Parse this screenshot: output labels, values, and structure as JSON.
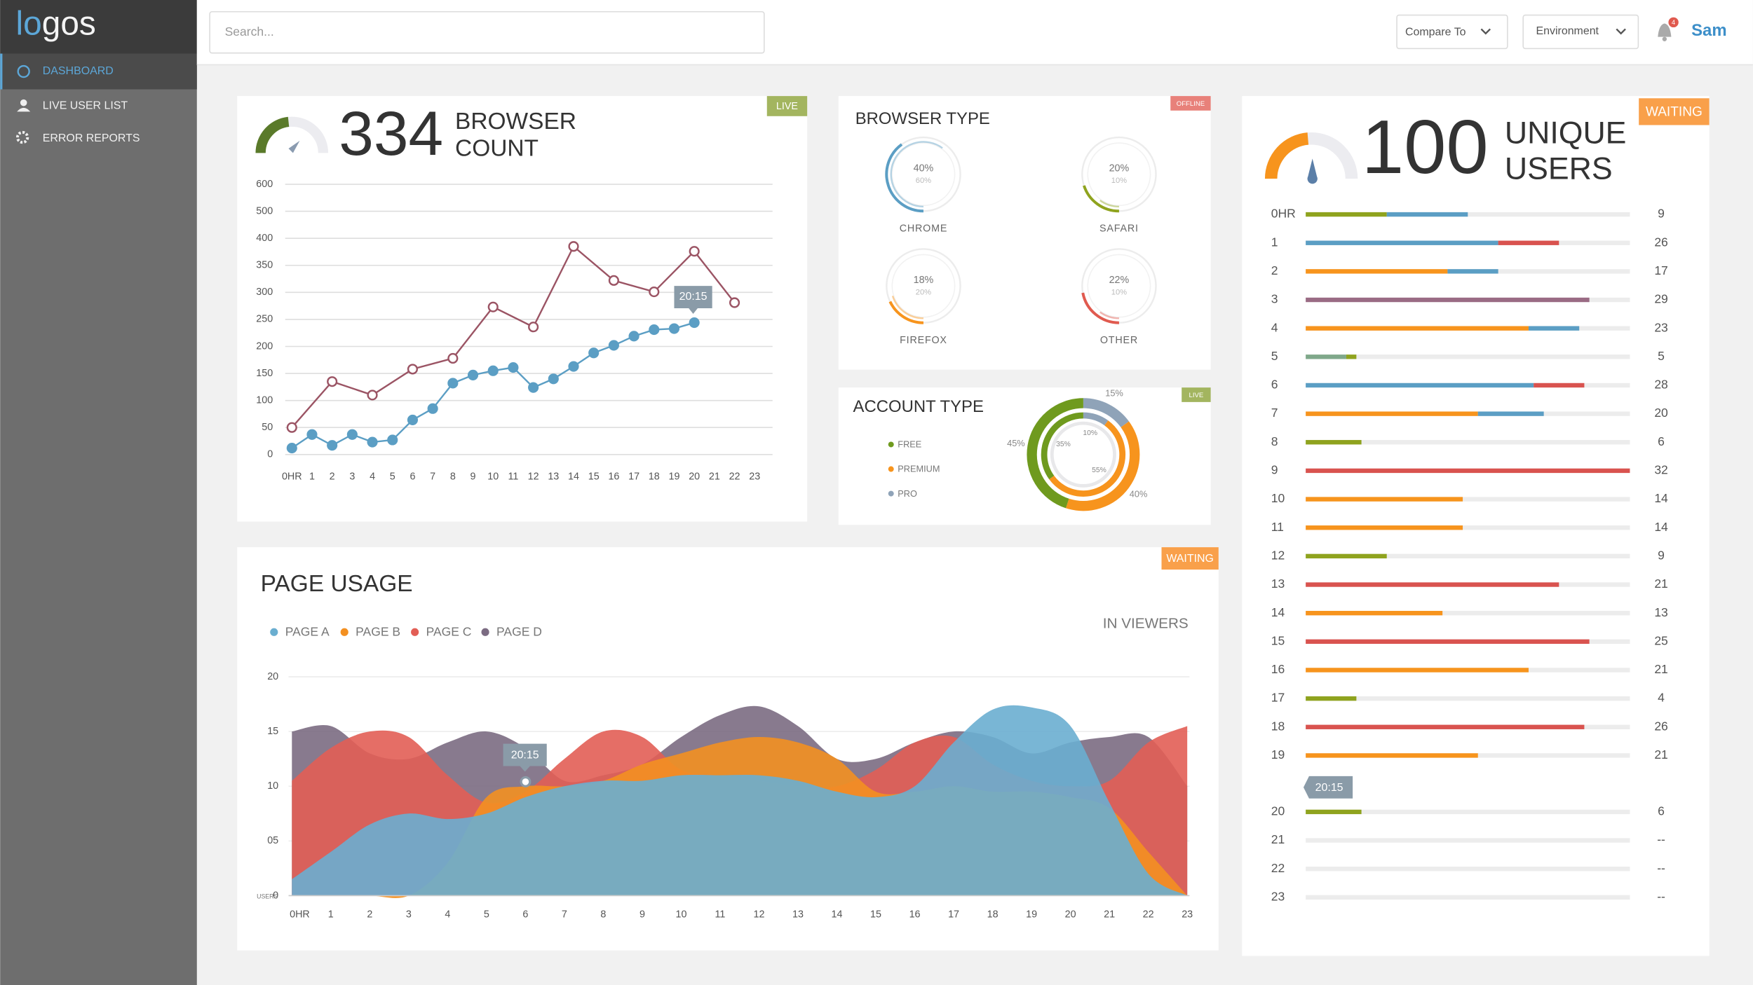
{
  "sidebar": {
    "logo": [
      "lo",
      "gos"
    ],
    "nav": [
      "DASHBOARD",
      "LIVE USER LIST",
      "ERROR REPORTS"
    ]
  },
  "header": {
    "search_placeholder": "Search...",
    "compare": "Compare To",
    "environment": "Environment",
    "notifications": "4",
    "user": "Sam"
  },
  "browser_count": {
    "badge": "LIVE",
    "count": 334,
    "label": [
      "BROWSER",
      "COUNT"
    ],
    "tooltip": "20:15",
    "chart": {
      "type": "line",
      "xlim": [
        0,
        23
      ],
      "xticks": [
        {
          "value": 0,
          "label": "0HR"
        },
        1,
        2,
        3,
        4,
        5,
        6,
        7,
        8,
        9,
        10,
        11,
        12,
        13,
        14,
        15,
        16,
        17,
        18,
        19,
        20,
        21,
        22,
        23
      ],
      "ylim": [
        0,
        600
      ],
      "yticks": [
        0,
        50,
        100,
        150,
        200,
        250,
        300,
        350,
        400,
        500,
        600
      ],
      "grid": true,
      "series": [
        {
          "color": "#9b5464",
          "x": [
            0,
            2,
            4,
            6,
            8,
            10,
            12,
            14,
            16,
            18,
            20,
            22
          ],
          "values": [
            50,
            135,
            110,
            158,
            178,
            273,
            236,
            385,
            322,
            301,
            376,
            281
          ]
        },
        {
          "color": "#5b9ec4",
          "x": [
            0,
            1,
            2,
            3,
            4,
            5,
            6,
            7,
            8,
            9,
            10,
            11,
            12,
            13,
            14,
            15,
            16,
            17,
            18,
            19,
            20
          ],
          "values": [
            12,
            37,
            17,
            37,
            23,
            27,
            64,
            85,
            132,
            147,
            155,
            161,
            124,
            140,
            163,
            188,
            202,
            219,
            231,
            233,
            244
          ]
        }
      ]
    }
  },
  "browser_type": {
    "title": "BROWSER TYPE",
    "badge": "OFFLINE",
    "items": [
      {
        "name": "CHROME",
        "color": "#5b9ec4",
        "value": 40,
        "value_label": "40%",
        "secondary": 60,
        "secondary_label": "60%"
      },
      {
        "name": "SAFARI",
        "color": "#8fa31e",
        "value": 20,
        "value_label": "20%",
        "secondary": 10,
        "secondary_label": "10%"
      },
      {
        "name": "FIREFOX",
        "color": "#f7941d",
        "value": 18,
        "value_label": "18%",
        "secondary": 20,
        "secondary_label": "20%"
      },
      {
        "name": "OTHER",
        "color": "#e05a4f",
        "value": 22,
        "value_label": "22%",
        "secondary": 10,
        "secondary_label": "10%"
      }
    ]
  },
  "account_type": {
    "title": "ACCOUNT TYPE",
    "badge": "LIVE",
    "segments": [
      {
        "name": "FREE",
        "color": "#6f9a1e",
        "outer": 45,
        "outer_label": "45%",
        "inner": 35,
        "inner_label": "35%"
      },
      {
        "name": "PREMIUM",
        "color": "#f7941d",
        "outer": 40,
        "outer_label": "40%",
        "inner": 55,
        "inner_label": "55%"
      },
      {
        "name": "PRO",
        "color": "#8fa3b8",
        "outer": 15,
        "outer_label": "15%",
        "inner": 10,
        "inner_label": "10%"
      }
    ]
  },
  "page_usage": {
    "title": "PAGE USAGE",
    "badge": "WAITING",
    "unit": "IN VIEWERS",
    "tooltip": "20:15",
    "chart": {
      "type": "area",
      "categories": [
        "0HR",
        "1",
        "2",
        "3",
        "4",
        "5",
        "6",
        "7",
        "8",
        "9",
        "10",
        "11",
        "12",
        "13",
        "14",
        "15",
        "16",
        "17",
        "18",
        "19",
        "20",
        "21",
        "22",
        "23"
      ],
      "ylim": [
        0,
        20
      ],
      "yticks": [
        0,
        {
          "value": 5,
          "label": "05"
        },
        10,
        15,
        20
      ],
      "y_label": "USERS",
      "grid": true,
      "series": [
        {
          "name": "PAGE A",
          "color": "#6aaed0",
          "values": [
            1.5,
            4,
            6.5,
            7.5,
            7,
            7.5,
            9,
            10,
            10.5,
            10.5,
            11,
            11,
            11,
            10.5,
            9.5,
            9,
            10,
            14,
            17,
            17.2,
            15.5,
            8.5,
            2,
            0
          ]
        },
        {
          "name": "PAGE B",
          "color": "#f39021",
          "values": [
            0,
            0,
            0,
            0,
            3,
            9,
            10,
            10,
            10.5,
            12,
            13,
            14,
            14.5,
            14,
            12.5,
            9.5,
            9.5,
            10,
            9.5,
            9.5,
            9,
            8,
            4,
            0
          ]
        },
        {
          "name": "PAGE C",
          "color": "#e25e55",
          "values": [
            10.5,
            13.5,
            15,
            14.5,
            11,
            8.5,
            9.5,
            12.5,
            15,
            14.5,
            11.5,
            11,
            10.5,
            10,
            10,
            11.5,
            14,
            14.5,
            12,
            10.5,
            10,
            10.5,
            14,
            15.5
          ]
        },
        {
          "name": "PAGE D",
          "color": "#7b6b82",
          "values": [
            15,
            15.5,
            13,
            12.5,
            14,
            15,
            13.5,
            10.5,
            11,
            12,
            14.5,
            16.5,
            17.3,
            15.5,
            12.5,
            12.5,
            14,
            15,
            14.5,
            13,
            14,
            14.5,
            14.5,
            10
          ]
        }
      ]
    }
  },
  "unique_users": {
    "badge": "WAITING",
    "count": 100,
    "label": [
      "UNIQUE",
      "USERS"
    ],
    "tooltip": "20:15",
    "xlim": [
      0,
      32
    ],
    "rows": [
      {
        "hour": "0HR",
        "total": 9,
        "segments": [
          {
            "color": "#8fa31e",
            "value": 8
          },
          {
            "color": "#5b9ec4",
            "value": 8
          }
        ]
      },
      {
        "hour": "1",
        "total": 26,
        "segments": [
          {
            "color": "#5b9ec4",
            "value": 19
          },
          {
            "color": "#d9534f",
            "value": 6
          }
        ]
      },
      {
        "hour": "2",
        "total": 17,
        "segments": [
          {
            "color": "#f7941d",
            "value": 14
          },
          {
            "color": "#5b9ec4",
            "value": 5
          }
        ]
      },
      {
        "hour": "3",
        "total": 29,
        "segments": [
          {
            "color": "#9a6b84",
            "value": 28
          }
        ]
      },
      {
        "hour": "4",
        "total": 23,
        "segments": [
          {
            "color": "#f7941d",
            "value": 22
          },
          {
            "color": "#5b9ec4",
            "value": 5
          }
        ]
      },
      {
        "hour": "5",
        "total": 5,
        "segments": [
          {
            "color": "#7fa88a",
            "value": 4
          },
          {
            "color": "#8fa31e",
            "value": 1
          }
        ]
      },
      {
        "hour": "6",
        "total": 28,
        "segments": [
          {
            "color": "#5b9ec4",
            "value": 22.5
          },
          {
            "color": "#d9534f",
            "value": 5
          }
        ]
      },
      {
        "hour": "7",
        "total": 20,
        "segments": [
          {
            "color": "#f7941d",
            "value": 17
          },
          {
            "color": "#5b9ec4",
            "value": 6.5
          }
        ]
      },
      {
        "hour": "8",
        "total": 6,
        "segments": [
          {
            "color": "#8fa31e",
            "value": 5.5
          }
        ]
      },
      {
        "hour": "9",
        "total": 32,
        "segments": [
          {
            "color": "#d9534f",
            "value": 32
          }
        ]
      },
      {
        "hour": "10",
        "total": 14,
        "segments": [
          {
            "color": "#f7941d",
            "value": 15.5
          }
        ]
      },
      {
        "hour": "11",
        "total": 14,
        "segments": [
          {
            "color": "#f7941d",
            "value": 15.5
          }
        ]
      },
      {
        "hour": "12",
        "total": 9,
        "segments": [
          {
            "color": "#8fa31e",
            "value": 8
          }
        ]
      },
      {
        "hour": "13",
        "total": 21,
        "segments": [
          {
            "color": "#d9534f",
            "value": 25
          }
        ]
      },
      {
        "hour": "14",
        "total": 13,
        "segments": [
          {
            "color": "#f7941d",
            "value": 13.5
          }
        ]
      },
      {
        "hour": "15",
        "total": 25,
        "segments": [
          {
            "color": "#d9534f",
            "value": 28
          }
        ]
      },
      {
        "hour": "16",
        "total": 21,
        "segments": [
          {
            "color": "#f7941d",
            "value": 22
          }
        ]
      },
      {
        "hour": "17",
        "total": 4,
        "segments": [
          {
            "color": "#8fa31e",
            "value": 5
          }
        ]
      },
      {
        "hour": "18",
        "total": 26,
        "segments": [
          {
            "color": "#d9534f",
            "value": 27.5
          }
        ]
      },
      {
        "hour": "19",
        "total": 21,
        "segments": [
          {
            "color": "#f7941d",
            "value": 17
          }
        ]
      },
      {
        "hour": "20",
        "total": 6,
        "segments": [
          {
            "color": "#8fa31e",
            "value": 5.5
          }
        ]
      },
      {
        "hour": "21",
        "total": "--",
        "segments": []
      },
      {
        "hour": "22",
        "total": "--",
        "segments": []
      },
      {
        "hour": "23",
        "total": "--",
        "segments": []
      }
    ]
  }
}
